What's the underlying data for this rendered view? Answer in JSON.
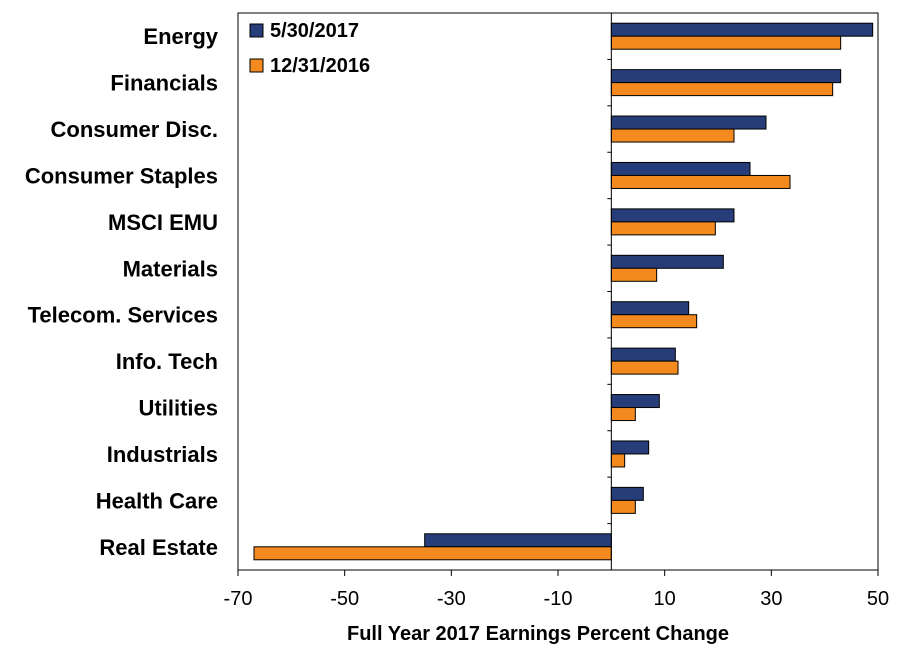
{
  "chart_data": {
    "type": "bar",
    "orientation": "horizontal",
    "categories": [
      "Energy",
      "Financials",
      "Consumer Disc.",
      "Consumer Staples",
      "MSCI EMU",
      "Materials",
      "Telecom. Services",
      "Info. Tech",
      "Utilities",
      "Industrials",
      "Health Care",
      "Real Estate"
    ],
    "series": [
      {
        "name": "5/30/2017",
        "color": "#263d7a",
        "values": [
          49,
          43,
          29,
          26,
          23,
          21,
          14.5,
          12,
          9,
          7,
          6,
          -35
        ]
      },
      {
        "name": "12/31/2016",
        "color": "#f28a20",
        "values": [
          43,
          41.5,
          23,
          33.5,
          19.5,
          8.5,
          16,
          12.5,
          4.5,
          2.5,
          4.5,
          -67
        ]
      }
    ],
    "xlabel": "Full Year 2017 Earnings Percent Change",
    "xlim": [
      -70,
      50
    ],
    "xticks": [
      "-70",
      "-50",
      "-30",
      "-10",
      "10",
      "30",
      "50"
    ],
    "xtick_values": [
      -70,
      -50,
      -30,
      -10,
      10,
      30,
      50
    ],
    "legend_position": "top-left",
    "grid": false
  }
}
